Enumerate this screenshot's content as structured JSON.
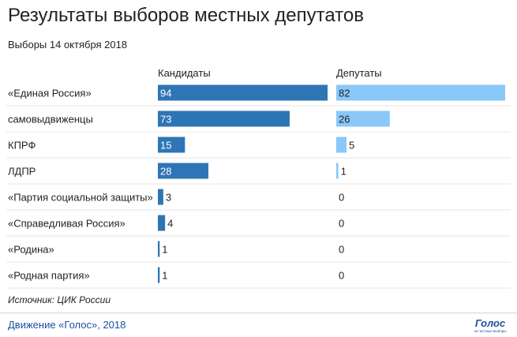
{
  "title": "Результаты выборов местных депутатов",
  "subtitle": "Выборы 14 октября 2018",
  "source": "Источник: ЦИК России",
  "footer": {
    "credit": "Движение «Голос», 2018",
    "logo_text": "Голос",
    "logo_tagline": "за честные выборы"
  },
  "colors": {
    "candidates": "#2e75b6",
    "deputies": "#89c8f7"
  },
  "chart_data": {
    "type": "bar",
    "categories": [
      "«Единая Россия»",
      "самовыдвиженцы",
      "КПРФ",
      "ЛДПР",
      "«Партия социальной защиты»",
      "«Справедливая Россия»",
      "«Родина»",
      "«Родная партия»"
    ],
    "series": [
      {
        "name": "Кандидаты",
        "values": [
          94,
          73,
          15,
          28,
          3,
          4,
          1,
          1
        ]
      },
      {
        "name": "Депутаты",
        "values": [
          82,
          26,
          5,
          1,
          0,
          0,
          0,
          0
        ]
      }
    ]
  }
}
